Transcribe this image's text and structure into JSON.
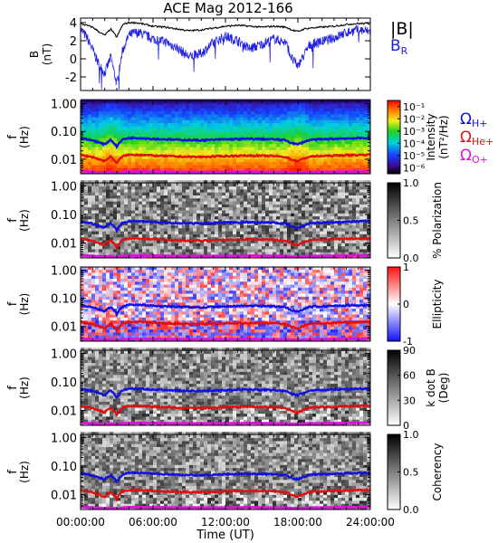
{
  "figure": {
    "title": "ACE Mag 2012-166",
    "x_axis_label": "Time (UT)",
    "x_ticks": [
      "00:00:00",
      "06:00:00",
      "12:00:00",
      "18:00:00",
      "24:00:00"
    ]
  },
  "chart_data": [
    {
      "type": "line",
      "panel": "field",
      "ylabel_top": "B",
      "ylabel_bottom": "(nT)",
      "ylim": [
        -3.5,
        4.5
      ],
      "y_ticks": [
        "4",
        "2",
        "0",
        "-2"
      ],
      "y_tick_values": [
        4,
        2,
        0,
        -2
      ],
      "x_hours": [
        0,
        0.5,
        1,
        1.5,
        2,
        2.5,
        3,
        3.5,
        4,
        4.5,
        5,
        6,
        7,
        8,
        9,
        10,
        11,
        12,
        13,
        14,
        15,
        16,
        17,
        17.5,
        18,
        18.5,
        19,
        20,
        21,
        22,
        23,
        24
      ],
      "series": [
        {
          "name": "|B|",
          "color": "#000000",
          "values": [
            3.9,
            3.7,
            3.5,
            3.0,
            2.6,
            3.3,
            2.4,
            3.8,
            4.0,
            4.0,
            3.9,
            3.6,
            3.5,
            3.3,
            3.1,
            3.2,
            3.4,
            3.6,
            3.7,
            3.6,
            3.5,
            3.6,
            3.5,
            3.2,
            3.0,
            3.3,
            3.4,
            3.5,
            3.6,
            3.8,
            3.9,
            3.9
          ]
        },
        {
          "name": "B",
          "name_subscript": "R",
          "color": "#2020e0",
          "values": [
            3.3,
            2.4,
            1.0,
            -0.6,
            -1.6,
            0.2,
            -2.8,
            1.0,
            2.6,
            2.9,
            2.8,
            2.2,
            1.9,
            1.2,
            0.2,
            0.6,
            1.8,
            2.5,
            2.0,
            1.1,
            1.6,
            2.2,
            1.8,
            0.0,
            -0.8,
            0.4,
            1.6,
            1.9,
            2.3,
            2.9,
            3.2,
            3.0
          ]
        }
      ]
    },
    {
      "type": "heatmap",
      "panel": "intensity",
      "ylabel": "f (Hz)",
      "colorbar_label": "Intensity (nT²/Hz)",
      "colormap": "rainbow",
      "colorbar_ticks": [
        "10⁻¹",
        "10⁻²",
        "10⁻³",
        "10⁻⁴",
        "10⁻⁵",
        "10⁻⁶"
      ],
      "colorbar_range": [
        -6.5,
        -0.5
      ]
    },
    {
      "type": "heatmap",
      "panel": "polarization",
      "ylabel": "f (Hz)",
      "colorbar_label": "% Polarization",
      "colormap": "gray",
      "colorbar_ticks": [
        "1.0",
        "0.5",
        "0.0"
      ],
      "colorbar_range": [
        0,
        1
      ]
    },
    {
      "type": "heatmap",
      "panel": "ellipticity",
      "ylabel": "f (Hz)",
      "colorbar_label": "Ellipticity",
      "colormap": "blue-white-red",
      "colorbar_ticks": [
        "1",
        "0",
        "-1"
      ],
      "colorbar_range": [
        -1,
        1
      ]
    },
    {
      "type": "heatmap",
      "panel": "kdotb",
      "ylabel": "f (Hz)",
      "colorbar_label": "k dot B (Deg)",
      "colormap": "gray",
      "colorbar_ticks": [
        "90",
        "60",
        "30",
        "0"
      ],
      "colorbar_range": [
        0,
        90
      ]
    },
    {
      "type": "heatmap",
      "panel": "coherency",
      "ylabel": "f (Hz)",
      "colorbar_label": "Coherency",
      "colormap": "gray",
      "colorbar_ticks": [
        "1.0",
        "0.5",
        "0.0"
      ],
      "colorbar_range": [
        0,
        1
      ]
    }
  ],
  "frequency_axis": {
    "ylim_hz": [
      0.003,
      1.3
    ],
    "ticks": [
      "1.00",
      "0.10",
      "0.01"
    ],
    "tick_values": [
      1.0,
      0.1,
      0.01
    ]
  },
  "gyrofrequencies": {
    "x_hours": [
      0,
      0.5,
      1,
      1.5,
      2,
      2.5,
      3,
      3.5,
      4,
      5,
      6,
      8,
      10,
      12,
      14,
      16,
      17,
      17.5,
      18,
      18.5,
      19,
      20,
      22,
      24
    ],
    "lines": [
      {
        "name": "Ω",
        "subscript": "H+",
        "color": "#1010e0",
        "values": [
          0.058,
          0.052,
          0.048,
          0.04,
          0.034,
          0.05,
          0.028,
          0.052,
          0.058,
          0.058,
          0.054,
          0.05,
          0.048,
          0.052,
          0.054,
          0.052,
          0.048,
          0.038,
          0.034,
          0.042,
          0.05,
          0.052,
          0.056,
          0.058
        ]
      },
      {
        "name": "Ω",
        "subscript": "He+",
        "color": "#e01010",
        "values": [
          0.0145,
          0.013,
          0.012,
          0.01,
          0.0085,
          0.0125,
          0.007,
          0.013,
          0.0145,
          0.0145,
          0.0135,
          0.0125,
          0.012,
          0.013,
          0.0135,
          0.013,
          0.012,
          0.0095,
          0.0085,
          0.0105,
          0.0125,
          0.013,
          0.014,
          0.0145
        ]
      },
      {
        "name": "Ω",
        "subscript": "O+",
        "color": "#e010e0",
        "values": [
          0.0037,
          0.0036,
          0.0035,
          0.0034,
          0.0033,
          0.0035,
          0.0032,
          0.0035,
          0.0036,
          0.0036,
          0.0036,
          0.0035,
          0.0035,
          0.0035,
          0.0036,
          0.0035,
          0.0035,
          0.0033,
          0.0033,
          0.0034,
          0.0035,
          0.0035,
          0.0036,
          0.0037
        ]
      }
    ]
  }
}
